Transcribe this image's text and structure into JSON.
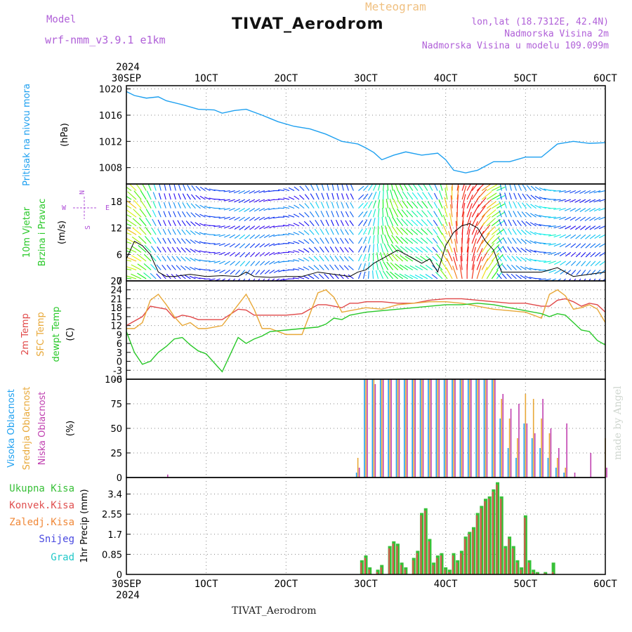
{
  "header": {
    "model_label": "Model",
    "model_name": "wrf-nmm_v3.9.1 e1km",
    "kind_label": "Meteogram",
    "station": "TIVAT_Aerodrom",
    "lonlat": "lon,lat (18.7312E, 42.4N)",
    "elevation": "Nadmorska Visina 2m",
    "model_elevation": "Nadmorska Visina u modelu 109.099m"
  },
  "signature": "made by Angel",
  "footer": {
    "station": "TIVAT_Aerodrom"
  },
  "time_axis": {
    "year": "2024",
    "tick_labels": [
      "30SEP",
      "1OCT",
      "2OCT",
      "3OCT",
      "4OCT",
      "5OCT",
      "6OCT"
    ],
    "range_days": [
      0,
      6
    ]
  },
  "colors": {
    "pressure": "#1ea0f0",
    "temp2m": "#e04848",
    "sfc_temp": "#e8a838",
    "dewpoint": "#28c828",
    "total_precip": "#38c038",
    "convective": "#e05050",
    "frozen": "#f08838",
    "snow": "#4848e0",
    "graupel": "#20c8c8",
    "purple": "#b050d8"
  },
  "chart_data": [
    {
      "type": "line",
      "name": "pressure",
      "ylabels": [
        "Pritisak na nivou mora",
        "(hPa)"
      ],
      "ylim": [
        1005.5,
        1020.5
      ],
      "yticks": [
        1008,
        1012,
        1016,
        1020
      ],
      "grid": true,
      "x": [
        0,
        0.1,
        0.25,
        0.4,
        0.5,
        0.7,
        0.9,
        1.1,
        1.2,
        1.35,
        1.5,
        1.7,
        1.9,
        2.1,
        2.3,
        2.5,
        2.7,
        2.9,
        3.0,
        3.1,
        3.2,
        3.35,
        3.5,
        3.7,
        3.9,
        4.0,
        4.1,
        4.25,
        4.4,
        4.6,
        4.8,
        5.0,
        5.2,
        5.4,
        5.6,
        5.8,
        6.0
      ],
      "series": [
        {
          "name": "",
          "values": [
            1019.6,
            1019.0,
            1018.6,
            1018.8,
            1018.2,
            1017.6,
            1016.9,
            1016.8,
            1016.3,
            1016.7,
            1016.9,
            1016.0,
            1015.0,
            1014.3,
            1013.9,
            1013.1,
            1012.0,
            1011.6,
            1011.0,
            1010.3,
            1009.2,
            1009.9,
            1010.4,
            1009.9,
            1010.2,
            1009.2,
            1007.6,
            1007.2,
            1007.6,
            1008.9,
            1008.9,
            1009.6,
            1009.6,
            1011.6,
            1012.0,
            1011.7,
            1011.8
          ]
        }
      ]
    },
    {
      "type": "line",
      "name": "wind",
      "ylabels": [
        "10m Vjetar",
        "Brzina i Pravac",
        "(m/s)"
      ],
      "compass": {
        "n": "N",
        "w": "W",
        "e": "E",
        "s": "S"
      },
      "ylim": [
        0,
        22
      ],
      "yticks": [
        0,
        6,
        12,
        18
      ],
      "grid": true,
      "x": [
        0,
        0.1,
        0.2,
        0.3,
        0.4,
        0.5,
        0.6,
        0.8,
        1.0,
        1.2,
        1.4,
        1.5,
        1.6,
        1.8,
        2.0,
        2.2,
        2.4,
        2.6,
        2.8,
        2.9,
        3.0,
        3.1,
        3.2,
        3.3,
        3.4,
        3.5,
        3.6,
        3.7,
        3.8,
        3.9,
        4.0,
        4.1,
        4.2,
        4.3,
        4.4,
        4.5,
        4.6,
        4.7,
        4.8,
        5.0,
        5.2,
        5.4,
        5.6,
        5.8,
        6.0
      ],
      "series": [
        {
          "name": "",
          "values": [
            5.0,
            9.0,
            8.0,
            6.0,
            2.0,
            1.0,
            1.0,
            1.5,
            1.0,
            1.2,
            1.0,
            2.0,
            1.0,
            0.8,
            1.0,
            1.0,
            2.0,
            1.5,
            1.0,
            2.0,
            2.5,
            4.0,
            5.0,
            6.0,
            7.0,
            6.0,
            5.0,
            4.0,
            5.0,
            2.0,
            8.0,
            11.0,
            12.5,
            13.0,
            12.0,
            9.0,
            7.0,
            2.0,
            2.0,
            2.0,
            2.0,
            3.0,
            1.0,
            1.5,
            2.0
          ]
        }
      ]
    },
    {
      "type": "line",
      "name": "temperature",
      "ylabels": [
        "2m Temp",
        "SFC Temp",
        "dewpt Temp",
        "(C)"
      ],
      "ylim": [
        -6,
        27
      ],
      "yticks": [
        -6,
        -3,
        0,
        3,
        6,
        9,
        12,
        15,
        18,
        21,
        24,
        27
      ],
      "grid": true,
      "x": [
        0,
        0.1,
        0.2,
        0.3,
        0.4,
        0.5,
        0.6,
        0.7,
        0.8,
        0.9,
        1.0,
        1.2,
        1.4,
        1.5,
        1.6,
        1.7,
        1.8,
        2.0,
        2.2,
        2.4,
        2.5,
        2.6,
        2.7,
        2.8,
        2.9,
        3.0,
        3.2,
        3.4,
        3.6,
        3.8,
        4.0,
        4.2,
        4.4,
        4.6,
        4.8,
        5.0,
        5.2,
        5.3,
        5.4,
        5.5,
        5.6,
        5.7,
        5.8,
        5.9,
        6.0
      ],
      "series": [
        {
          "name": "2m Temp",
          "values": [
            12.0,
            13.5,
            15.0,
            18.5,
            18.0,
            17.5,
            14.5,
            15.5,
            15.0,
            14.0,
            14.0,
            14.0,
            17.5,
            17.2,
            15.5,
            15.5,
            15.5,
            15.5,
            16.0,
            19.0,
            19.0,
            18.5,
            18.0,
            19.5,
            19.5,
            20.0,
            20.0,
            19.5,
            19.5,
            20.5,
            21.0,
            21.0,
            20.5,
            20.0,
            19.5,
            19.5,
            18.5,
            18.5,
            20.5,
            21.0,
            20.0,
            18.5,
            19.5,
            19.0,
            16.5
          ]
        },
        {
          "name": "SFC Temp",
          "values": [
            11.0,
            11.0,
            13.0,
            20.5,
            22.5,
            19.0,
            15.0,
            12.0,
            13.0,
            11.0,
            11.0,
            12.0,
            19.0,
            22.5,
            17.5,
            11.0,
            11.0,
            9.0,
            9.0,
            23.0,
            24.0,
            21.5,
            16.5,
            17.0,
            17.5,
            18.0,
            17.5,
            19.0,
            19.5,
            20.0,
            20.0,
            19.5,
            18.5,
            17.5,
            17.0,
            16.5,
            14.5,
            22.5,
            24.0,
            22.0,
            17.5,
            18.0,
            19.0,
            17.5,
            13.0
          ]
        },
        {
          "name": "dewpt Temp",
          "values": [
            10.0,
            3.0,
            -1.0,
            0.0,
            3.0,
            5.0,
            7.5,
            8.0,
            5.5,
            3.5,
            2.5,
            -3.5,
            8.0,
            6.0,
            7.5,
            8.5,
            10.0,
            10.5,
            11.0,
            11.5,
            12.5,
            14.5,
            14.0,
            15.5,
            16.0,
            16.5,
            17.0,
            17.5,
            18.0,
            18.5,
            19.0,
            19.0,
            19.5,
            19.0,
            18.0,
            17.0,
            16.0,
            15.0,
            16.0,
            15.5,
            13.0,
            10.5,
            10.0,
            7.0,
            5.5
          ]
        }
      ]
    },
    {
      "type": "bar",
      "name": "cloud_cover",
      "ylabels": [
        "Visoka Oblacnost",
        "Srednja Oblacnost",
        "Niska Oblacnost",
        "(%)"
      ],
      "ylim": [
        0,
        100
      ],
      "yticks": [
        0,
        25,
        50,
        75,
        100
      ],
      "grid": true,
      "x": [
        0.5,
        1.0,
        2.0,
        2.9,
        3.0,
        3.1,
        3.2,
        3.3,
        3.4,
        3.5,
        3.6,
        3.7,
        3.8,
        3.9,
        4.0,
        4.1,
        4.2,
        4.3,
        4.4,
        4.5,
        4.6,
        4.7,
        4.8,
        4.9,
        5.0,
        5.1,
        5.2,
        5.3,
        5.4,
        5.5,
        5.6,
        5.8,
        6.0
      ],
      "series": [
        {
          "name": "Visoka Oblacnost",
          "values": [
            0,
            0,
            0,
            5,
            100,
            100,
            100,
            100,
            100,
            100,
            100,
            100,
            100,
            100,
            100,
            100,
            100,
            100,
            100,
            100,
            100,
            60,
            30,
            20,
            55,
            40,
            30,
            20,
            10,
            5,
            0,
            0,
            0
          ]
        },
        {
          "name": "Srednja Oblacnost",
          "values": [
            0,
            0,
            0,
            20,
            100,
            100,
            100,
            100,
            100,
            100,
            100,
            100,
            100,
            100,
            100,
            100,
            100,
            100,
            100,
            100,
            100,
            80,
            60,
            40,
            85,
            80,
            60,
            45,
            20,
            10,
            0,
            0,
            40
          ]
        },
        {
          "name": "Niska Oblacnost",
          "values": [
            3,
            0,
            0,
            10,
            100,
            95,
            100,
            100,
            100,
            100,
            100,
            100,
            100,
            100,
            100,
            100,
            100,
            100,
            100,
            100,
            100,
            85,
            70,
            75,
            55,
            45,
            80,
            50,
            30,
            55,
            5,
            25,
            10
          ]
        }
      ]
    },
    {
      "type": "bar",
      "name": "precipitation",
      "ylabels": [
        "Ukupna Kisa",
        "Konvek.Kisa",
        "Zaledj.Kisa",
        "Snijeg",
        "Grad",
        "1hr Precip (mm)"
      ],
      "ylim": [
        0,
        4.1
      ],
      "yticks": [
        0,
        0.85,
        1.7,
        2.55,
        3.4
      ],
      "ytick_labels": [
        "0",
        "0.85",
        "1.7",
        "2.55",
        "3.4"
      ],
      "grid": true,
      "x": [
        2.95,
        3.0,
        3.05,
        3.15,
        3.2,
        3.3,
        3.35,
        3.4,
        3.45,
        3.5,
        3.6,
        3.65,
        3.7,
        3.75,
        3.8,
        3.85,
        3.9,
        3.95,
        4.0,
        4.05,
        4.1,
        4.15,
        4.2,
        4.25,
        4.3,
        4.35,
        4.4,
        4.45,
        4.5,
        4.55,
        4.6,
        4.65,
        4.7,
        4.75,
        4.8,
        4.85,
        4.9,
        4.95,
        5.0,
        5.05,
        5.1,
        5.15,
        5.25,
        5.35
      ],
      "series": [
        {
          "name": "Ukupna Kisa",
          "values": [
            0.6,
            0.8,
            0.3,
            0.2,
            0.4,
            1.2,
            1.4,
            1.3,
            0.5,
            0.3,
            0.7,
            1.0,
            2.6,
            2.8,
            1.5,
            0.5,
            0.8,
            0.9,
            0.3,
            0.2,
            0.9,
            0.6,
            1.0,
            1.6,
            1.8,
            2.0,
            2.6,
            2.9,
            3.2,
            3.3,
            3.6,
            3.9,
            3.3,
            1.2,
            1.6,
            1.2,
            0.6,
            0.3,
            2.5,
            0.6,
            0.2,
            0.1,
            0.1,
            0.5
          ]
        },
        {
          "name": "Konvek.Kisa",
          "values": [
            0.5,
            0.7,
            0.2,
            0.1,
            0.3,
            1.1,
            1.3,
            1.2,
            0.4,
            0.2,
            0.6,
            0.9,
            2.5,
            2.7,
            1.4,
            0.4,
            0.7,
            0.8,
            0.2,
            0.1,
            0.8,
            0.5,
            0.9,
            1.5,
            1.7,
            1.9,
            2.5,
            2.8,
            3.1,
            3.2,
            3.5,
            3.8,
            3.2,
            1.1,
            1.5,
            1.1,
            0.5,
            0.2,
            2.4,
            0.5,
            0.1,
            0.05,
            0.05,
            0.1
          ]
        }
      ]
    }
  ]
}
